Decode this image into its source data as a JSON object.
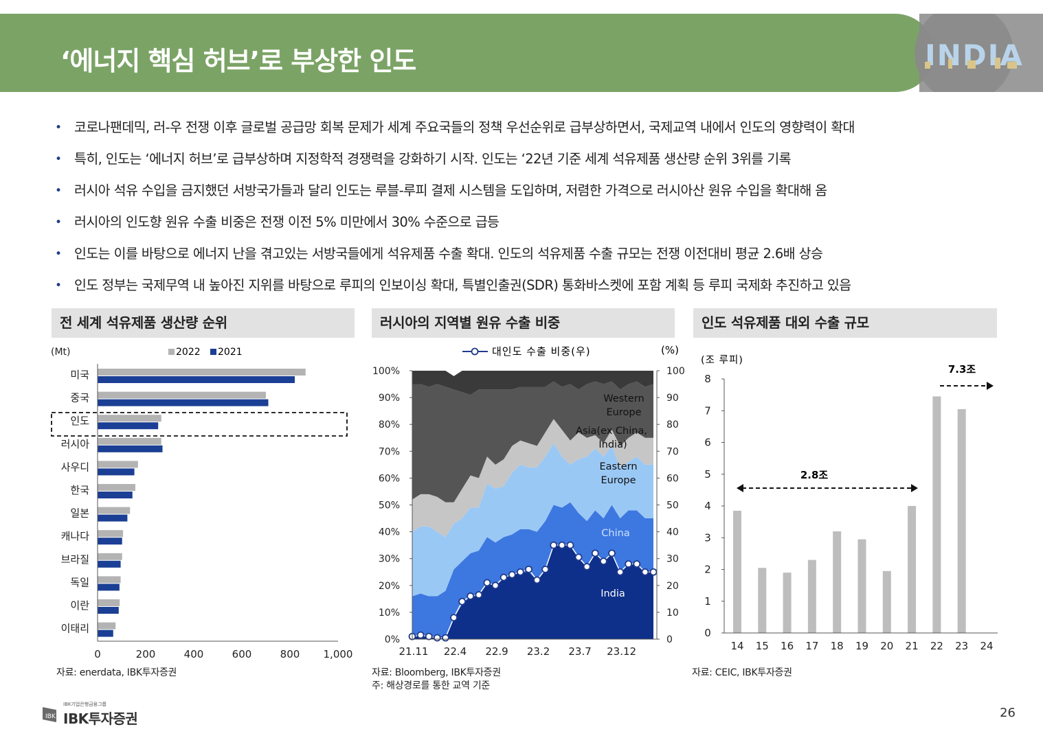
{
  "header": {
    "title": "‘에너지 핵심 허브’로 부상한 인도",
    "badge_text": "INDIA",
    "banner_color": "#7ba366"
  },
  "bullets": [
    "코로나팬데믹, 러-우 전쟁 이후 글로벌 공급망 회복 문제가 세계 주요국들의 정책 우선순위로 급부상하면서, 국제교역 내에서 인도의 영향력이 확대",
    "특히, 인도는 ‘에너지 허브’로 급부상하며 지정학적 경쟁력을 강화하기 시작. 인도는 ‘22년 기준 세계 석유제품 생산량 순위 3위를 기록",
    "러시아 석유 수입을 금지했던 서방국가들과 달리 인도는 루블-루피 결제 시스템을 도입하며, 저렴한 가격으로 러시아산 원유 수입을 확대해 옴",
    "러시아의 인도향 원유 수출 비중은 전쟁 이전 5% 미만에서 30% 수준으로 급등",
    "인도는 이를 바탕으로 에너지 난을 겪고있는 서방국들에게 석유제품 수출 확대. 인도의 석유제품 수출 규모는 전쟁 이전대비 평균 2.6배 상승",
    "인도 정부는 국제무역 내 높아진 지위를 바탕으로 루피의 인보이싱 확대, 특별인출권(SDR) 통화바스켓에 포함 계획 등 루피 국제화 추진하고 있음"
  ],
  "panels": {
    "p1_title": "전 세계 석유제품 생산량 순위",
    "p2_title": "러시아의 지역별 원유 수출 비중",
    "p3_title": "인도 석유제품 대외 수출 규모"
  },
  "sources": {
    "p1": "자료: enerdata, IBK투자증권",
    "p2_line1": "자료: Bloomberg, IBK투자증권",
    "p2_line2": "주: 해상경로를 통한 교역 기준",
    "p3": "자료: CEIC, IBK투자증권"
  },
  "footer": {
    "logo_small": "IBK기업은행금융그룹",
    "logo_text": "IBK투자증권",
    "page_number": "26"
  },
  "colors": {
    "bar_2022": "#b3b3b3",
    "bar_2021": "#1a3f94",
    "india_area": "#0e2f8a",
    "china_area": "#3d78e0",
    "eastern_europe_area": "#9ac8f5",
    "asia_area": "#c6c6c6",
    "western_europe_area": "#555555",
    "top_area": "#3a3a3a",
    "line": "#1f3b8a",
    "export_bar": "#bdbdbd"
  },
  "chart_data": [
    {
      "type": "bar",
      "orientation": "horizontal",
      "title": "전 세계 석유제품 생산량 순위",
      "unit_label": "(Mt)",
      "categories": [
        "미국",
        "중국",
        "인도",
        "러시아",
        "사우디",
        "한국",
        "일본",
        "캐나다",
        "브라질",
        "독일",
        "이란",
        "이태리"
      ],
      "series": [
        {
          "name": "2022",
          "values": [
            865,
            700,
            265,
            265,
            168,
            157,
            135,
            106,
            102,
            96,
            92,
            75
          ]
        },
        {
          "name": "2021",
          "values": [
            820,
            710,
            252,
            270,
            153,
            145,
            124,
            102,
            96,
            91,
            88,
            65
          ]
        }
      ],
      "xlim": [
        0,
        1000
      ],
      "xticks": [
        "0",
        "200",
        "400",
        "600",
        "800",
        "1,000"
      ],
      "highlight": "인도"
    },
    {
      "type": "area",
      "stacked": true,
      "title": "러시아의 지역별 원유 수출 비중",
      "x_tick_labels": [
        "21.11",
        "22.4",
        "22.9",
        "23.2",
        "23.7",
        "23.12"
      ],
      "left_yticks": [
        "0%",
        "10%",
        "20%",
        "30%",
        "40%",
        "50%",
        "60%",
        "70%",
        "80%",
        "90%",
        "100%"
      ],
      "right_yticks": [
        "0",
        "10",
        "20",
        "30",
        "40",
        "50",
        "60",
        "70",
        "80",
        "90",
        "100"
      ],
      "right_unit": "(%)",
      "legend_line_label": "대인도 수출 비중(우)",
      "area_labels": [
        "Western Europe",
        "Asia(ex China, India)",
        "Eastern Europe",
        "China",
        "India"
      ],
      "months": 30,
      "series": [
        {
          "name": "India",
          "values": [
            1,
            1,
            1,
            1,
            1,
            8,
            13,
            16,
            16,
            21,
            20,
            23,
            24,
            25,
            25,
            22,
            26,
            35,
            35,
            35,
            30,
            27,
            32,
            29,
            32,
            25,
            28,
            28,
            25,
            25
          ]
        },
        {
          "name": "China",
          "values": [
            15,
            16,
            15,
            15,
            17,
            18,
            16,
            16,
            17,
            17,
            16,
            15,
            15,
            16,
            16,
            18,
            18,
            15,
            14,
            16,
            17,
            17,
            16,
            16,
            18,
            20,
            20,
            20,
            20,
            20
          ]
        },
        {
          "name": "Eastern Europe",
          "values": [
            24,
            25,
            26,
            24,
            20,
            17,
            16,
            17,
            16,
            20,
            20,
            19,
            23,
            24,
            23,
            24,
            24,
            23,
            19,
            14,
            20,
            24,
            23,
            23,
            22,
            19,
            18,
            20,
            20,
            20
          ]
        },
        {
          "name": "Asia(ex China, India)",
          "values": [
            12,
            12,
            12,
            13,
            13,
            8,
            11,
            12,
            11,
            10,
            9,
            10,
            10,
            9,
            9,
            8,
            9,
            9,
            10,
            9,
            10,
            7,
            5,
            5,
            6,
            8,
            9,
            9,
            10,
            10
          ]
        },
        {
          "name": "Western Europe",
          "values": [
            43,
            41,
            40,
            42,
            43,
            42,
            36,
            30,
            33,
            25,
            28,
            26,
            21,
            20,
            21,
            22,
            17,
            14,
            16,
            21,
            16,
            20,
            20,
            22,
            18,
            21,
            20,
            19,
            19,
            20
          ]
        },
        {
          "name": "Other",
          "values": [
            5,
            5,
            6,
            5,
            6,
            5,
            8,
            9,
            7,
            7,
            7,
            7,
            7,
            6,
            6,
            6,
            6,
            4,
            6,
            5,
            7,
            5,
            4,
            5,
            4,
            7,
            5,
            4,
            6,
            5
          ]
        }
      ],
      "line_series": {
        "name": "대인도 수출 비중(우)",
        "values": [
          1,
          1.5,
          1,
          0.5,
          0.5,
          8,
          14,
          16,
          16.5,
          21,
          20,
          23,
          24,
          25,
          26,
          22,
          26,
          35,
          35,
          35,
          30.5,
          27,
          32,
          29,
          32,
          25,
          28,
          28,
          25,
          25
        ]
      },
      "ylim": [
        0,
        100
      ]
    },
    {
      "type": "bar",
      "title": "인도 석유제품 대외 수출 규모",
      "unit_label": "(조 루피)",
      "categories": [
        "14",
        "15",
        "16",
        "17",
        "18",
        "19",
        "20",
        "21",
        "22",
        "23",
        "24"
      ],
      "values": [
        3.85,
        2.05,
        1.9,
        2.3,
        3.2,
        2.95,
        1.95,
        4.0,
        7.45,
        7.05,
        null
      ],
      "ylim": [
        0,
        8
      ],
      "yticks": [
        "0",
        "1",
        "2",
        "3",
        "4",
        "5",
        "6",
        "7",
        "8"
      ],
      "annotations": [
        "2.8조",
        "7.3조"
      ]
    }
  ]
}
